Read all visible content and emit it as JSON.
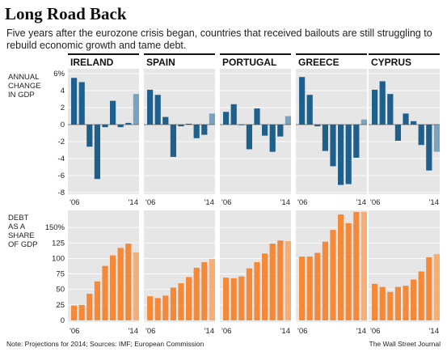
{
  "header": {
    "title": "Long Road Back",
    "subtitle": "Five years after the eurozone crisis began, countries that received bailouts are still struggling to rebuild economic growth and tame debt."
  },
  "colors": {
    "gdp_bar": "#1f5f8b",
    "gdp_projection": "#7aa3c0",
    "debt_bar": "#f5893a",
    "debt_projection": "#f8ad72",
    "panel_bg": "#e6e6e6",
    "country_rule": "#111111"
  },
  "footer": {
    "note": "Note: Projections for 2014; Sources: IMF; European Commission",
    "source": "The Wall Street Journal"
  },
  "chart_data": [
    {
      "type": "bar",
      "row_label": [
        "ANNUAL",
        "CHANGE",
        "IN GDP"
      ],
      "x_range": [
        "'06",
        "'14"
      ],
      "ylim": [
        -8,
        6
      ],
      "yticks": [
        {
          "value": 6,
          "label": "6%"
        },
        {
          "value": 4,
          "label": "4"
        },
        {
          "value": 2,
          "label": "2"
        },
        {
          "value": 0,
          "label": "0"
        },
        {
          "value": -2,
          "label": "-2"
        },
        {
          "value": -4,
          "label": "-4"
        },
        {
          "value": -6,
          "label": "-6"
        },
        {
          "value": -8,
          "label": "-8"
        }
      ],
      "projection_index": 8,
      "panels": [
        {
          "country": "IRELAND",
          "values": [
            5.5,
            5.0,
            -2.6,
            -6.4,
            -0.3,
            2.8,
            -0.3,
            0.2,
            3.6
          ]
        },
        {
          "country": "SPAIN",
          "values": [
            4.1,
            3.5,
            0.9,
            -3.8,
            -0.2,
            0.1,
            -1.6,
            -1.2,
            1.3
          ]
        },
        {
          "country": "PORTUGAL",
          "values": [
            1.5,
            2.4,
            0.0,
            -2.9,
            1.9,
            -1.3,
            -3.2,
            -1.4,
            1.0
          ]
        },
        {
          "country": "GREECE",
          "values": [
            5.6,
            3.5,
            -0.2,
            -3.1,
            -4.9,
            -7.1,
            -7.0,
            -3.9,
            0.6
          ]
        },
        {
          "country": "CYPRUS",
          "values": [
            4.1,
            5.1,
            3.6,
            -1.9,
            1.3,
            0.4,
            -2.4,
            -5.4,
            -3.2
          ]
        }
      ]
    },
    {
      "type": "bar",
      "row_label": [
        "DEBT",
        "AS A",
        "SHARE",
        "OF GDP"
      ],
      "x_range": [
        "'06",
        "'14"
      ],
      "ylim": [
        0,
        175
      ],
      "yticks": [
        {
          "value": 150,
          "label": "150%"
        },
        {
          "value": 125,
          "label": "125"
        },
        {
          "value": 100,
          "label": "100"
        },
        {
          "value": 75,
          "label": "75"
        },
        {
          "value": 50,
          "label": "50"
        },
        {
          "value": 25,
          "label": "25"
        },
        {
          "value": 0,
          "label": "0"
        }
      ],
      "projection_index": 8,
      "panels": [
        {
          "country": "IRELAND",
          "values": [
            24,
            25,
            43,
            63,
            88,
            105,
            117,
            124,
            110
          ]
        },
        {
          "country": "SPAIN",
          "values": [
            39,
            36,
            40,
            53,
            60,
            70,
            85,
            94,
            99
          ]
        },
        {
          "country": "PORTUGAL",
          "values": [
            69,
            68,
            71,
            84,
            94,
            108,
            124,
            129,
            128
          ]
        },
        {
          "country": "GREECE",
          "values": [
            103,
            103,
            109,
            127,
            146,
            171,
            157,
            175,
            175
          ]
        },
        {
          "country": "CYPRUS",
          "values": [
            59,
            54,
            46,
            54,
            56,
            66,
            79,
            102,
            107
          ]
        }
      ]
    }
  ]
}
